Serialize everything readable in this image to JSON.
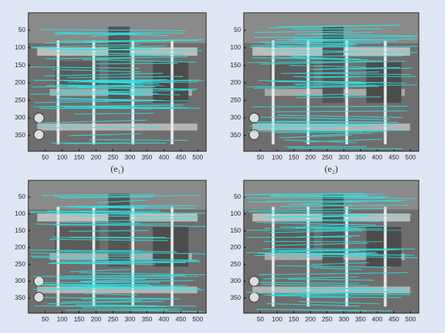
{
  "figure": {
    "panels": [
      {
        "caption": "(e₁)",
        "xlim": [
          0,
          525
        ],
        "ylim": [
          0,
          395
        ],
        "xticks": [
          50,
          100,
          150,
          200,
          250,
          300,
          350,
          400,
          450,
          500
        ],
        "yticks": [
          50,
          100,
          150,
          200,
          250,
          300,
          350
        ]
      },
      {
        "caption": "(e₂)",
        "xlim": [
          0,
          525
        ],
        "ylim": [
          0,
          395
        ],
        "xticks": [
          50,
          100,
          150,
          200,
          250,
          300,
          350,
          400,
          450,
          500
        ],
        "yticks": [
          50,
          100,
          150,
          200,
          250,
          300,
          350
        ]
      },
      {
        "xlim": [
          0,
          525
        ],
        "ylim": [
          0,
          395
        ],
        "xticks": [
          50,
          100,
          150,
          200,
          250,
          300,
          350,
          400,
          450,
          500
        ],
        "yticks": [
          50,
          100,
          150,
          200,
          250,
          300,
          350
        ]
      },
      {
        "xlim": [
          0,
          525
        ],
        "ylim": [
          0,
          395
        ],
        "xticks": [
          50,
          100,
          150,
          200,
          250,
          300,
          350,
          400,
          450,
          500
        ],
        "yticks": [
          50,
          100,
          150,
          200,
          250,
          300,
          350
        ]
      }
    ]
  }
}
